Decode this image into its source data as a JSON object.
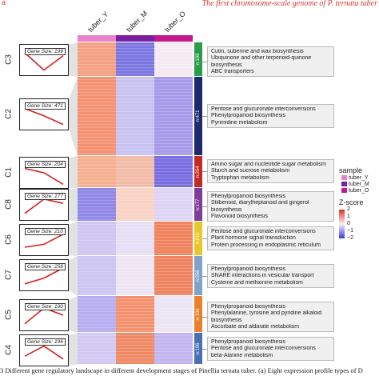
{
  "header": {
    "corner_mark": "a",
    "journal_text": "The first chromosome-scale genome of P. ternata tuber"
  },
  "samples": [
    "tuber_Y",
    "tuber_M",
    "tuber_O"
  ],
  "colors": {
    "tuber_Y": "#e983c9",
    "tuber_M": "#7a1f9f",
    "tuber_O": "#c2188f",
    "high": "#e0301e",
    "low": "#3a3ae0"
  },
  "clusters": [
    {
      "id": "C3",
      "gene_size": "Gene Size: 199",
      "n": "n:199",
      "tag_color": "#2a9d4a",
      "terms": [
        "Cutin, suberine and wax biosynthesis",
        "Ubiquinone and other terpenoid-quinone",
        "biosynthesis",
        "ABC transporters"
      ]
    },
    {
      "id": "C2",
      "gene_size": "Gene Size: 471",
      "n": "n:471",
      "tag_color": "#1e2a6e",
      "terms": [
        "Pentose and glucuronate interconversions",
        "Phenylpropanoid biosynthesis",
        "Pyrimidine metabolism"
      ]
    },
    {
      "id": "C1",
      "gene_size": "Gene Size: 204",
      "n": "n:204",
      "tag_color": "#c22a25",
      "terms": [
        "Amino sugar and nucleotide sugar metabolism",
        "Starch and sucrose metabolism",
        "Tryptophan metabolism"
      ]
    },
    {
      "id": "C8",
      "gene_size": "Gene Size: 177",
      "n": "n:177",
      "tag_color": "#7f3c9a",
      "terms": [
        "Phenylpropanoid biosynthesis",
        "Stilbenoid, diarylheptanoid and gingerol",
        "biosynthesis",
        "Flavonoid biosynthesis"
      ]
    },
    {
      "id": "C6",
      "gene_size": "Gene Size: 210",
      "n": "n:210",
      "tag_color": "#e6c82a",
      "terms": [
        "Pentose and glucuronate interconversions",
        "Plant hormone signal transduction",
        "Protein processing in endoplasmic reticulum"
      ]
    },
    {
      "id": "C7",
      "gene_size": "Gene Size: 258",
      "n": "n:258",
      "tag_color": "#7fa3c9",
      "terms": [
        "Phenylpropanoid biosynthesis",
        "SNARE interactions in vesicular transport",
        "Cysteine and methionine metabolism"
      ]
    },
    {
      "id": "C5",
      "gene_size": "Gene Size: 190",
      "n": "n:190",
      "tag_color": "#e8812a",
      "terms": [
        "Phenylpropanoid biosynthesis",
        "Phenylalanine, tyrosine and pyridine alkaloid",
        "biosynthesis",
        "Ascorbate and aldarate metabolism"
      ]
    },
    {
      "id": "C4",
      "gene_size": "Gene Size: 196",
      "n": "n:196",
      "tag_color": "#4a6fb5",
      "terms": [
        "Phenylpropanoid biosynthesis",
        "Pentose and glucuronate interconversions",
        "beta-Alanine metabolism"
      ]
    }
  ],
  "legend": {
    "sample_title": "sample",
    "sample_items": [
      "tuber_Y",
      "tuber_M",
      "tuber_O"
    ],
    "zscore_title": "Z-score",
    "zscore_ticks": [
      "2",
      "1",
      "0",
      "−1",
      "−2"
    ]
  },
  "caption": "3  Different gene regulatory landscape in different development stages of Pinellia ternata tuber. (a) Eight expression profile types of D"
}
